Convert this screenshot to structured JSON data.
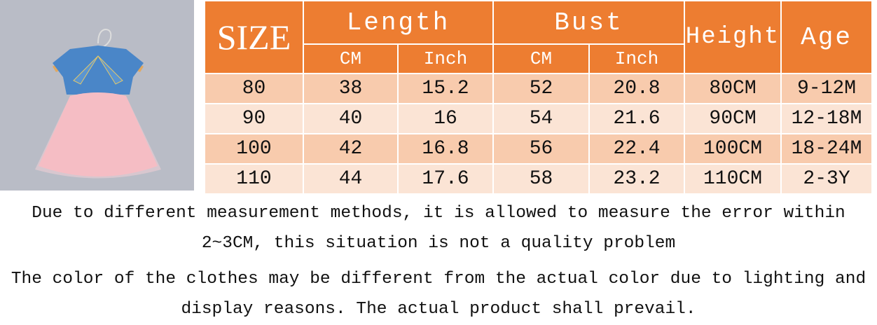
{
  "colors": {
    "header": "#ED7D31",
    "row_odd": "#F8CBAD",
    "row_even": "#FBE4D5"
  },
  "photo": {
    "description_icon": "dress-product-photo"
  },
  "table": {
    "headers": {
      "size": "SIZE",
      "length": "Length",
      "bust": "Bust",
      "height": "Height",
      "age": "Age",
      "cm": "CM",
      "inch": "Inch"
    },
    "rows": [
      [
        "80",
        "38",
        "15.2",
        "52",
        "20.8",
        "80CM",
        "9-12M"
      ],
      [
        "90",
        "40",
        "16",
        "54",
        "21.6",
        "90CM",
        "12-18M"
      ],
      [
        "100",
        "42",
        "16.8",
        "56",
        "22.4",
        "100CM",
        "18-24M"
      ],
      [
        "110",
        "44",
        "17.6",
        "58",
        "23.2",
        "110CM",
        "2-3Y"
      ]
    ]
  },
  "notes": {
    "line1": "Due to different measurement methods, it is allowed to measure the error within",
    "line2": "2~3CM, this situation is not a quality problem",
    "line3": "The color of the clothes may be different from the actual color due to lighting and",
    "line4": "display reasons. The actual product shall prevail."
  }
}
